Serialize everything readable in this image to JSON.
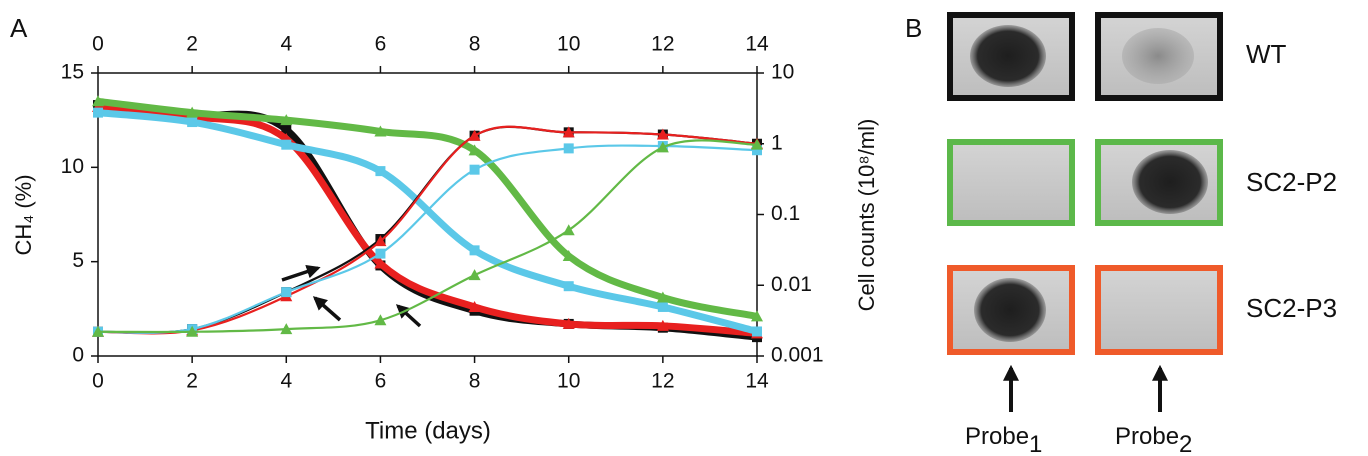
{
  "panel_labels": [
    "A",
    "B"
  ],
  "chart_data": {
    "type": "line",
    "x": [
      0,
      2,
      4,
      6,
      8,
      10,
      12,
      14
    ],
    "xlim": [
      0,
      14
    ],
    "xticks": [
      0,
      2,
      4,
      6,
      8,
      10,
      12,
      14
    ],
    "xlabel": "Time (days)",
    "ylabel": "CH₄ (%)",
    "ylim": [
      0,
      15
    ],
    "yticks": [
      0,
      5,
      10,
      15
    ],
    "y2label": "Cell counts (10⁸/ml)",
    "y2scale": "log",
    "y2lim": [
      0.001,
      10
    ],
    "y2ticks": [
      0.001,
      0.01,
      0.1,
      1,
      10
    ],
    "grid": false,
    "series": [
      {
        "color": "#111111",
        "marker": "square",
        "axis": "y",
        "values": [
          13.3,
          12.8,
          12.0,
          4.8,
          2.4,
          1.7,
          1.5,
          1.0
        ]
      },
      {
        "color": "#e8201f",
        "marker": "triangle",
        "axis": "y",
        "values": [
          13.2,
          12.7,
          11.5,
          4.9,
          2.6,
          1.7,
          1.6,
          1.2
        ]
      },
      {
        "color": "#5bc8e8",
        "marker": "square",
        "axis": "y",
        "values": [
          12.9,
          12.4,
          11.2,
          9.8,
          5.6,
          3.7,
          2.6,
          1.3
        ]
      },
      {
        "color": "#62b946",
        "marker": "triangle",
        "axis": "y",
        "values": [
          13.5,
          12.9,
          12.5,
          11.9,
          10.9,
          5.3,
          3.1,
          2.1
        ]
      },
      {
        "color": "#111111",
        "marker": "square",
        "axis": "y2",
        "values": [
          0.0022,
          0.0024,
          0.008,
          0.045,
          1.3,
          1.45,
          1.35,
          1.0
        ]
      },
      {
        "color": "#e8201f",
        "marker": "triangle",
        "axis": "y2",
        "values": [
          0.0022,
          0.0023,
          0.007,
          0.042,
          1.3,
          1.45,
          1.35,
          1.0
        ]
      },
      {
        "color": "#5bc8e8",
        "marker": "square",
        "axis": "y2",
        "values": [
          0.0022,
          0.0024,
          0.008,
          0.028,
          0.43,
          0.86,
          0.93,
          0.81
        ]
      },
      {
        "color": "#62b946",
        "marker": "triangle",
        "axis": "y2",
        "values": [
          0.0022,
          0.0022,
          0.0024,
          0.0032,
          0.0139,
          0.06,
          0.89,
          0.97
        ]
      }
    ]
  },
  "blot": {
    "rows": [
      "WT",
      "SC2-P2",
      "SC2-P3"
    ],
    "probes": [
      [
        "Probe",
        "1"
      ],
      [
        "Probe",
        "2"
      ]
    ]
  }
}
